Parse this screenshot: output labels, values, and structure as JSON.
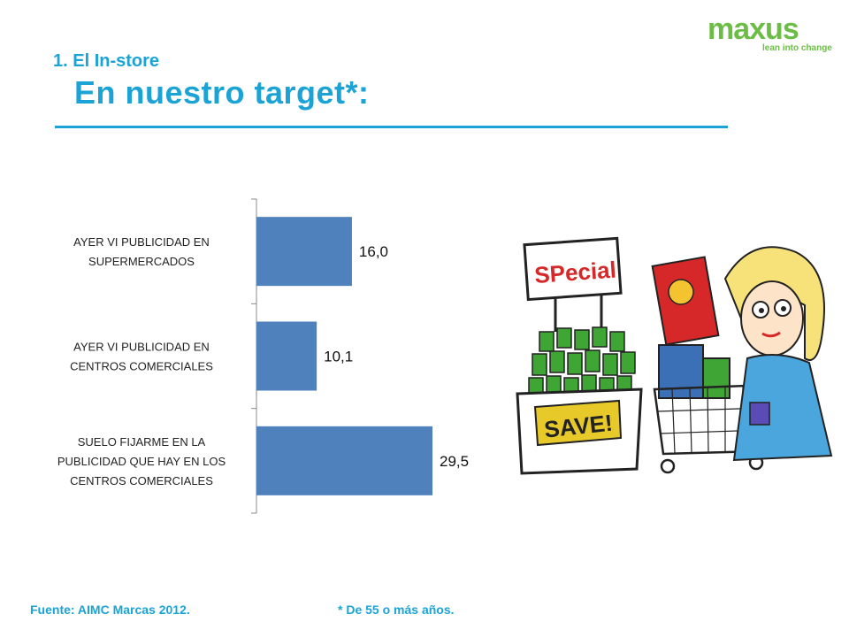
{
  "header": {
    "section": "1. El In-store",
    "title": "En nuestro target*:"
  },
  "logo": {
    "word": "maxus",
    "tagline": "lean into change"
  },
  "colors": {
    "accent": "#1ba3d6",
    "bar": "#4f81bd",
    "logo": "#6cbd45"
  },
  "chart_data": {
    "type": "bar",
    "orientation": "horizontal",
    "categories": [
      [
        "AYER VI PUBLICIDAD EN",
        "SUPERMERCADOS"
      ],
      [
        "AYER VI PUBLICIDAD EN",
        "CENTROS COMERCIALES"
      ],
      [
        "SUELO FIJARME EN LA",
        "PUBLICIDAD QUE HAY EN LOS",
        "CENTROS COMERCIALES"
      ]
    ],
    "values": [
      16.0,
      10.1,
      29.5
    ],
    "value_labels": [
      "16,0",
      "10,1",
      "29,5"
    ],
    "xlim": [
      0,
      40
    ],
    "grid": false,
    "legend": "none"
  },
  "footer": {
    "source": "Fuente: AIMC Marcas 2012.",
    "note": "* De 55 o más años."
  },
  "illustration": {
    "sign_text": "SPecial",
    "box_text": "SAVE!"
  }
}
